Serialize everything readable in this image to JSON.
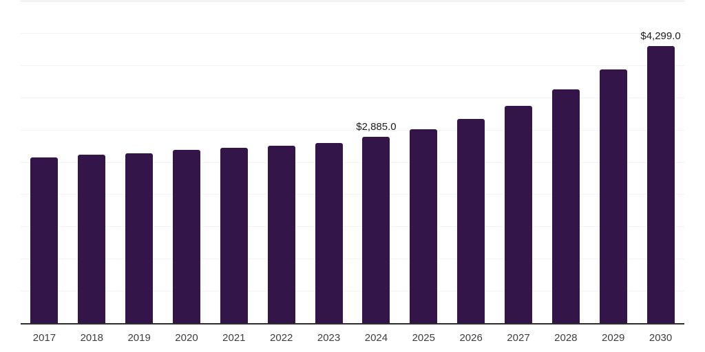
{
  "chart_data": {
    "type": "bar",
    "title": "",
    "xlabel": "",
    "ylabel": "",
    "categories": [
      "2017",
      "2018",
      "2019",
      "2020",
      "2021",
      "2022",
      "2023",
      "2024",
      "2025",
      "2026",
      "2027",
      "2028",
      "2029",
      "2030"
    ],
    "values": [
      2572,
      2607,
      2637,
      2682,
      2715,
      2749,
      2796,
      2885.0,
      3005,
      3170,
      3373,
      3630,
      3932,
      4299.0
    ],
    "data_labels": [
      {
        "category": "2024",
        "text": "$2,885.0"
      },
      {
        "category": "2030",
        "text": "$4,299.0"
      }
    ],
    "ylim": [
      0,
      5000
    ],
    "gridline_step": 500,
    "grid": true,
    "legend": false,
    "y_axis_tick_labels": false,
    "bar_color": "#33154A",
    "axis_color": "#2d2d2d",
    "gridline_color": "#f3f3f3",
    "top_gridline_color": "#e7e7e7",
    "tick_label_color": "#3d3d3d",
    "data_label_color": "#1c1c1c"
  }
}
